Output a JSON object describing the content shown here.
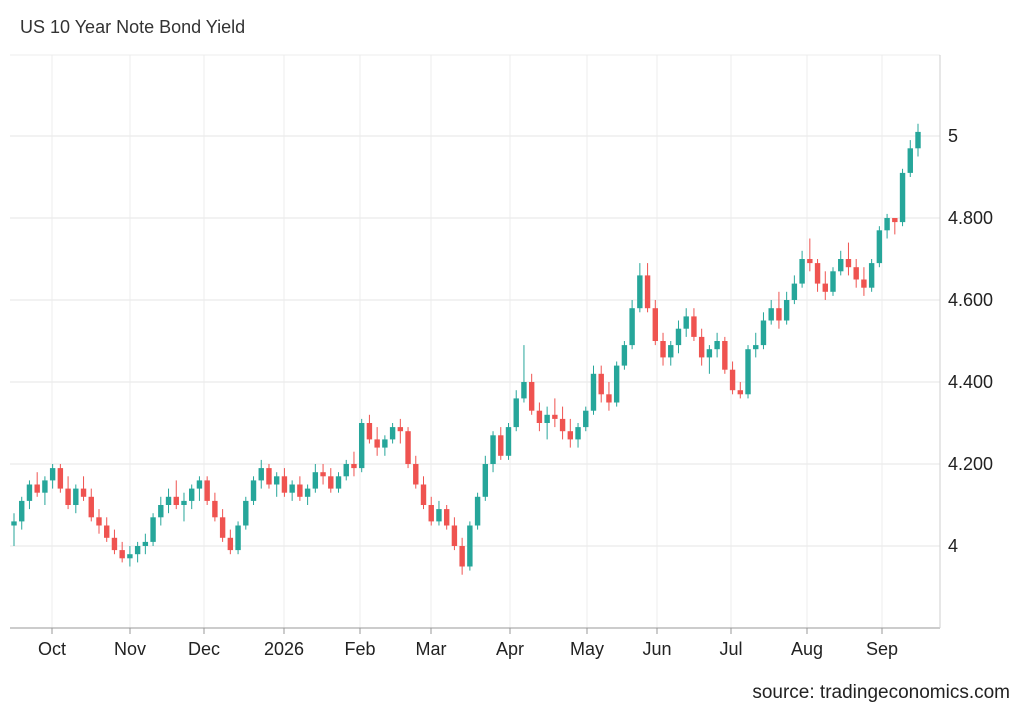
{
  "chart_data": {
    "type": "candlestick",
    "title": "US 10 Year Note Bond Yield",
    "source": "source: tradingeconomics.com",
    "ylim": [
      3.8,
      5.2
    ],
    "yticks": [
      {
        "value": 4,
        "label": "4"
      },
      {
        "value": 4.2,
        "label": "4.200"
      },
      {
        "value": 4.4,
        "label": "4.400"
      },
      {
        "value": 4.6,
        "label": "4.600"
      },
      {
        "value": 4.8,
        "label": "4.800"
      },
      {
        "value": 5,
        "label": "5"
      }
    ],
    "xticks": [
      "Oct",
      "Nov",
      "Dec",
      "2026",
      "Feb",
      "Mar",
      "Apr",
      "May",
      "Jun",
      "Jul",
      "Aug",
      "Sep"
    ],
    "grid": true,
    "up_color": "#26a69a",
    "down_color": "#ef5350",
    "series": [
      {
        "o": 4.05,
        "h": 4.08,
        "l": 4.0,
        "c": 4.06
      },
      {
        "o": 4.06,
        "h": 4.12,
        "l": 4.04,
        "c": 4.11
      },
      {
        "o": 4.11,
        "h": 4.16,
        "l": 4.09,
        "c": 4.15
      },
      {
        "o": 4.15,
        "h": 4.18,
        "l": 4.12,
        "c": 4.13
      },
      {
        "o": 4.13,
        "h": 4.17,
        "l": 4.1,
        "c": 4.16
      },
      {
        "o": 4.16,
        "h": 4.2,
        "l": 4.14,
        "c": 4.19
      },
      {
        "o": 4.19,
        "h": 4.2,
        "l": 4.13,
        "c": 4.14
      },
      {
        "o": 4.14,
        "h": 4.17,
        "l": 4.09,
        "c": 4.1
      },
      {
        "o": 4.1,
        "h": 4.15,
        "l": 4.08,
        "c": 4.14
      },
      {
        "o": 4.14,
        "h": 4.17,
        "l": 4.11,
        "c": 4.12
      },
      {
        "o": 4.12,
        "h": 4.14,
        "l": 4.06,
        "c": 4.07
      },
      {
        "o": 4.07,
        "h": 4.09,
        "l": 4.03,
        "c": 4.05
      },
      {
        "o": 4.05,
        "h": 4.07,
        "l": 4.01,
        "c": 4.02
      },
      {
        "o": 4.02,
        "h": 4.04,
        "l": 3.98,
        "c": 3.99
      },
      {
        "o": 3.99,
        "h": 4.01,
        "l": 3.96,
        "c": 3.97
      },
      {
        "o": 3.97,
        "h": 4.0,
        "l": 3.95,
        "c": 3.98
      },
      {
        "o": 3.98,
        "h": 4.01,
        "l": 3.96,
        "c": 4.0
      },
      {
        "o": 4.0,
        "h": 4.03,
        "l": 3.98,
        "c": 4.01
      },
      {
        "o": 4.01,
        "h": 4.08,
        "l": 4.0,
        "c": 4.07
      },
      {
        "o": 4.07,
        "h": 4.12,
        "l": 4.05,
        "c": 4.1
      },
      {
        "o": 4.1,
        "h": 4.14,
        "l": 4.08,
        "c": 4.12
      },
      {
        "o": 4.12,
        "h": 4.16,
        "l": 4.09,
        "c": 4.1
      },
      {
        "o": 4.1,
        "h": 4.13,
        "l": 4.06,
        "c": 4.11
      },
      {
        "o": 4.11,
        "h": 4.15,
        "l": 4.09,
        "c": 4.14
      },
      {
        "o": 4.14,
        "h": 4.17,
        "l": 4.11,
        "c": 4.16
      },
      {
        "o": 4.16,
        "h": 4.17,
        "l": 4.1,
        "c": 4.11
      },
      {
        "o": 4.11,
        "h": 4.13,
        "l": 4.06,
        "c": 4.07
      },
      {
        "o": 4.07,
        "h": 4.09,
        "l": 4.01,
        "c": 4.02
      },
      {
        "o": 4.02,
        "h": 4.04,
        "l": 3.98,
        "c": 3.99
      },
      {
        "o": 3.99,
        "h": 4.06,
        "l": 3.98,
        "c": 4.05
      },
      {
        "o": 4.05,
        "h": 4.12,
        "l": 4.04,
        "c": 4.11
      },
      {
        "o": 4.11,
        "h": 4.17,
        "l": 4.1,
        "c": 4.16
      },
      {
        "o": 4.16,
        "h": 4.21,
        "l": 4.14,
        "c": 4.19
      },
      {
        "o": 4.19,
        "h": 4.2,
        "l": 4.14,
        "c": 4.15
      },
      {
        "o": 4.15,
        "h": 4.18,
        "l": 4.12,
        "c": 4.17
      },
      {
        "o": 4.17,
        "h": 4.19,
        "l": 4.12,
        "c": 4.13
      },
      {
        "o": 4.13,
        "h": 4.16,
        "l": 4.11,
        "c": 4.15
      },
      {
        "o": 4.15,
        "h": 4.17,
        "l": 4.11,
        "c": 4.12
      },
      {
        "o": 4.12,
        "h": 4.15,
        "l": 4.1,
        "c": 4.14
      },
      {
        "o": 4.14,
        "h": 4.2,
        "l": 4.13,
        "c": 4.18
      },
      {
        "o": 4.18,
        "h": 4.2,
        "l": 4.15,
        "c": 4.17
      },
      {
        "o": 4.17,
        "h": 4.19,
        "l": 4.13,
        "c": 4.14
      },
      {
        "o": 4.14,
        "h": 4.18,
        "l": 4.13,
        "c": 4.17
      },
      {
        "o": 4.17,
        "h": 4.21,
        "l": 4.16,
        "c": 4.2
      },
      {
        "o": 4.2,
        "h": 4.23,
        "l": 4.17,
        "c": 4.19
      },
      {
        "o": 4.19,
        "h": 4.31,
        "l": 4.18,
        "c": 4.3
      },
      {
        "o": 4.3,
        "h": 4.32,
        "l": 4.25,
        "c": 4.26
      },
      {
        "o": 4.26,
        "h": 4.29,
        "l": 4.22,
        "c": 4.24
      },
      {
        "o": 4.24,
        "h": 4.27,
        "l": 4.22,
        "c": 4.26
      },
      {
        "o": 4.26,
        "h": 4.3,
        "l": 4.25,
        "c": 4.29
      },
      {
        "o": 4.29,
        "h": 4.31,
        "l": 4.25,
        "c": 4.28
      },
      {
        "o": 4.28,
        "h": 4.29,
        "l": 4.19,
        "c": 4.2
      },
      {
        "o": 4.2,
        "h": 4.22,
        "l": 4.14,
        "c": 4.15
      },
      {
        "o": 4.15,
        "h": 4.17,
        "l": 4.09,
        "c": 4.1
      },
      {
        "o": 4.1,
        "h": 4.12,
        "l": 4.05,
        "c": 4.06
      },
      {
        "o": 4.06,
        "h": 4.11,
        "l": 4.05,
        "c": 4.09
      },
      {
        "o": 4.09,
        "h": 4.1,
        "l": 4.04,
        "c": 4.05
      },
      {
        "o": 4.05,
        "h": 4.07,
        "l": 3.99,
        "c": 4.0
      },
      {
        "o": 4.0,
        "h": 4.02,
        "l": 3.93,
        "c": 3.95
      },
      {
        "o": 3.95,
        "h": 4.06,
        "l": 3.94,
        "c": 4.05
      },
      {
        "o": 4.05,
        "h": 4.13,
        "l": 4.04,
        "c": 4.12
      },
      {
        "o": 4.12,
        "h": 4.22,
        "l": 4.11,
        "c": 4.2
      },
      {
        "o": 4.2,
        "h": 4.28,
        "l": 4.18,
        "c": 4.27
      },
      {
        "o": 4.27,
        "h": 4.29,
        "l": 4.21,
        "c": 4.22
      },
      {
        "o": 4.22,
        "h": 4.3,
        "l": 4.21,
        "c": 4.29
      },
      {
        "o": 4.29,
        "h": 4.38,
        "l": 4.28,
        "c": 4.36
      },
      {
        "o": 4.36,
        "h": 4.49,
        "l": 4.35,
        "c": 4.4
      },
      {
        "o": 4.4,
        "h": 4.42,
        "l": 4.32,
        "c": 4.33
      },
      {
        "o": 4.33,
        "h": 4.35,
        "l": 4.28,
        "c": 4.3
      },
      {
        "o": 4.3,
        "h": 4.34,
        "l": 4.26,
        "c": 4.32
      },
      {
        "o": 4.32,
        "h": 4.36,
        "l": 4.29,
        "c": 4.31
      },
      {
        "o": 4.31,
        "h": 4.34,
        "l": 4.26,
        "c": 4.28
      },
      {
        "o": 4.28,
        "h": 4.31,
        "l": 4.24,
        "c": 4.26
      },
      {
        "o": 4.26,
        "h": 4.3,
        "l": 4.24,
        "c": 4.29
      },
      {
        "o": 4.29,
        "h": 4.34,
        "l": 4.28,
        "c": 4.33
      },
      {
        "o": 4.33,
        "h": 4.44,
        "l": 4.32,
        "c": 4.42
      },
      {
        "o": 4.42,
        "h": 4.44,
        "l": 4.35,
        "c": 4.37
      },
      {
        "o": 4.37,
        "h": 4.4,
        "l": 4.33,
        "c": 4.35
      },
      {
        "o": 4.35,
        "h": 4.45,
        "l": 4.34,
        "c": 4.44
      },
      {
        "o": 4.44,
        "h": 4.5,
        "l": 4.43,
        "c": 4.49
      },
      {
        "o": 4.49,
        "h": 4.6,
        "l": 4.48,
        "c": 4.58
      },
      {
        "o": 4.58,
        "h": 4.69,
        "l": 4.57,
        "c": 4.66
      },
      {
        "o": 4.66,
        "h": 4.69,
        "l": 4.57,
        "c": 4.58
      },
      {
        "o": 4.58,
        "h": 4.6,
        "l": 4.49,
        "c": 4.5
      },
      {
        "o": 4.5,
        "h": 4.52,
        "l": 4.44,
        "c": 4.46
      },
      {
        "o": 4.46,
        "h": 4.5,
        "l": 4.44,
        "c": 4.49
      },
      {
        "o": 4.49,
        "h": 4.55,
        "l": 4.47,
        "c": 4.53
      },
      {
        "o": 4.53,
        "h": 4.58,
        "l": 4.51,
        "c": 4.56
      },
      {
        "o": 4.56,
        "h": 4.58,
        "l": 4.5,
        "c": 4.51
      },
      {
        "o": 4.51,
        "h": 4.53,
        "l": 4.44,
        "c": 4.46
      },
      {
        "o": 4.46,
        "h": 4.49,
        "l": 4.42,
        "c": 4.48
      },
      {
        "o": 4.48,
        "h": 4.52,
        "l": 4.46,
        "c": 4.5
      },
      {
        "o": 4.5,
        "h": 4.51,
        "l": 4.42,
        "c": 4.43
      },
      {
        "o": 4.43,
        "h": 4.45,
        "l": 4.37,
        "c": 4.38
      },
      {
        "o": 4.38,
        "h": 4.4,
        "l": 4.36,
        "c": 4.37
      },
      {
        "o": 4.37,
        "h": 4.49,
        "l": 4.36,
        "c": 4.48
      },
      {
        "o": 4.48,
        "h": 4.52,
        "l": 4.46,
        "c": 4.49
      },
      {
        "o": 4.49,
        "h": 4.57,
        "l": 4.48,
        "c": 4.55
      },
      {
        "o": 4.55,
        "h": 4.6,
        "l": 4.54,
        "c": 4.58
      },
      {
        "o": 4.58,
        "h": 4.62,
        "l": 4.53,
        "c": 4.55
      },
      {
        "o": 4.55,
        "h": 4.62,
        "l": 4.54,
        "c": 4.6
      },
      {
        "o": 4.6,
        "h": 4.66,
        "l": 4.59,
        "c": 4.64
      },
      {
        "o": 4.64,
        "h": 4.72,
        "l": 4.63,
        "c": 4.7
      },
      {
        "o": 4.7,
        "h": 4.75,
        "l": 4.67,
        "c": 4.69
      },
      {
        "o": 4.69,
        "h": 4.7,
        "l": 4.62,
        "c": 4.64
      },
      {
        "o": 4.64,
        "h": 4.67,
        "l": 4.6,
        "c": 4.62
      },
      {
        "o": 4.62,
        "h": 4.68,
        "l": 4.61,
        "c": 4.67
      },
      {
        "o": 4.67,
        "h": 4.72,
        "l": 4.66,
        "c": 4.7
      },
      {
        "o": 4.7,
        "h": 4.74,
        "l": 4.66,
        "c": 4.68
      },
      {
        "o": 4.68,
        "h": 4.7,
        "l": 4.63,
        "c": 4.65
      },
      {
        "o": 4.65,
        "h": 4.68,
        "l": 4.61,
        "c": 4.63
      },
      {
        "o": 4.63,
        "h": 4.7,
        "l": 4.62,
        "c": 4.69
      },
      {
        "o": 4.69,
        "h": 4.78,
        "l": 4.68,
        "c": 4.77
      },
      {
        "o": 4.77,
        "h": 4.81,
        "l": 4.75,
        "c": 4.8
      },
      {
        "o": 4.8,
        "h": 4.8,
        "l": 4.76,
        "c": 4.79
      },
      {
        "o": 4.79,
        "h": 4.92,
        "l": 4.78,
        "c": 4.91
      },
      {
        "o": 4.91,
        "h": 4.99,
        "l": 4.9,
        "c": 4.97
      },
      {
        "o": 4.97,
        "h": 5.03,
        "l": 4.95,
        "c": 5.01
      }
    ]
  }
}
